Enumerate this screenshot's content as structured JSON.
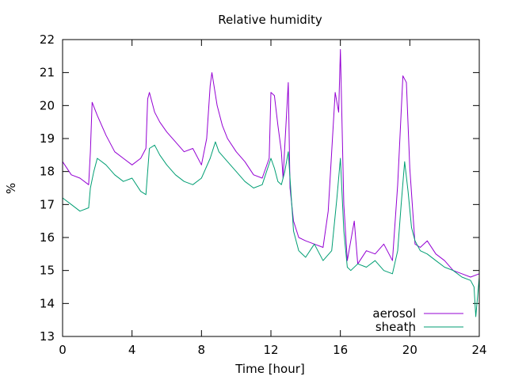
{
  "chart_data": {
    "type": "line",
    "title": "Relative humidity",
    "xlabel": "Time [hour]",
    "ylabel": "%",
    "xlim": [
      0,
      24
    ],
    "ylim": [
      13,
      22
    ],
    "xticks": [
      0,
      4,
      8,
      12,
      16,
      20,
      24
    ],
    "yticks": [
      13,
      14,
      15,
      16,
      17,
      18,
      19,
      20,
      21,
      22
    ],
    "grid": false,
    "legend_position": "bottom-right",
    "series": [
      {
        "name": "aerosol",
        "color": "#9400d3",
        "x": [
          0,
          0.5,
          1.0,
          1.5,
          1.6,
          1.7,
          2.0,
          2.5,
          3.0,
          3.5,
          4.0,
          4.5,
          4.8,
          4.9,
          5.0,
          5.3,
          5.6,
          6.0,
          6.5,
          7.0,
          7.5,
          8.0,
          8.3,
          8.5,
          8.6,
          8.9,
          9.2,
          9.5,
          10.0,
          10.5,
          11.0,
          11.5,
          11.9,
          12.0,
          12.2,
          12.4,
          12.6,
          12.7,
          13.0,
          13.1,
          13.3,
          13.6,
          14.0,
          14.5,
          15.0,
          15.3,
          15.5,
          15.7,
          15.9,
          16.0,
          16.2,
          16.4,
          16.6,
          16.8,
          17.0,
          17.5,
          18.0,
          18.5,
          19.0,
          19.3,
          19.5,
          19.6,
          19.8,
          20.0,
          20.3,
          20.6,
          21.0,
          21.5,
          22.0,
          22.5,
          23.0,
          23.5,
          24.0
        ],
        "values": [
          18.3,
          17.9,
          17.8,
          17.6,
          18.6,
          20.1,
          19.7,
          19.1,
          18.6,
          18.4,
          18.2,
          18.4,
          18.7,
          20.2,
          20.4,
          19.8,
          19.5,
          19.2,
          18.9,
          18.6,
          18.7,
          18.2,
          19.0,
          20.6,
          21.0,
          20.0,
          19.4,
          19.0,
          18.6,
          18.3,
          17.9,
          17.8,
          18.4,
          20.4,
          20.3,
          19.4,
          18.6,
          17.8,
          20.7,
          17.5,
          16.5,
          16.0,
          15.9,
          15.8,
          15.7,
          16.8,
          18.6,
          20.4,
          19.8,
          21.7,
          17.0,
          15.3,
          15.9,
          16.5,
          15.2,
          15.6,
          15.5,
          15.8,
          15.3,
          17.6,
          19.8,
          20.9,
          20.7,
          18.1,
          15.8,
          15.7,
          15.9,
          15.5,
          15.3,
          15.0,
          14.9,
          14.8,
          14.9
        ]
      },
      {
        "name": "sheath",
        "color": "#009e73",
        "x": [
          0,
          0.5,
          1.0,
          1.5,
          1.6,
          1.8,
          2.0,
          2.5,
          3.0,
          3.5,
          4.0,
          4.5,
          4.8,
          5.0,
          5.3,
          5.6,
          6.0,
          6.5,
          7.0,
          7.5,
          8.0,
          8.5,
          8.8,
          9.0,
          9.5,
          10.0,
          10.5,
          11.0,
          11.5,
          12.0,
          12.2,
          12.4,
          12.6,
          12.8,
          13.0,
          13.3,
          13.6,
          14.0,
          14.5,
          15.0,
          15.5,
          15.8,
          16.0,
          16.2,
          16.4,
          16.6,
          17.0,
          17.5,
          18.0,
          18.5,
          19.0,
          19.3,
          19.5,
          19.7,
          19.9,
          20.1,
          20.3,
          20.6,
          21.0,
          21.5,
          22.0,
          22.5,
          23.0,
          23.5,
          23.7,
          23.8,
          24.0
        ],
        "values": [
          17.2,
          17.0,
          16.8,
          16.9,
          17.5,
          18.0,
          18.4,
          18.2,
          17.9,
          17.7,
          17.8,
          17.4,
          17.3,
          18.7,
          18.8,
          18.5,
          18.2,
          17.9,
          17.7,
          17.6,
          17.8,
          18.4,
          18.9,
          18.6,
          18.3,
          18.0,
          17.7,
          17.5,
          17.6,
          18.4,
          18.1,
          17.7,
          17.6,
          18.0,
          18.6,
          16.2,
          15.6,
          15.4,
          15.8,
          15.3,
          15.6,
          17.2,
          18.4,
          16.2,
          15.1,
          15.0,
          15.2,
          15.1,
          15.3,
          15.0,
          14.9,
          15.6,
          17.0,
          18.3,
          17.4,
          16.3,
          15.9,
          15.6,
          15.5,
          15.3,
          15.1,
          15.0,
          14.8,
          14.7,
          14.5,
          13.6,
          14.8
        ]
      }
    ]
  }
}
